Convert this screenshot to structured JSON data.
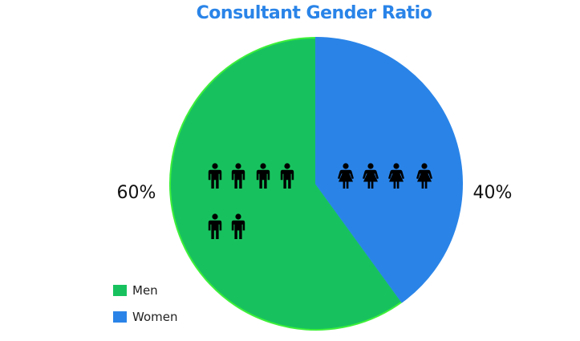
{
  "chart_data": {
    "type": "pie",
    "title": "Consultant Gender Ratio",
    "slices": [
      {
        "name": "Men",
        "value": 60,
        "label": "60%",
        "color": "#17c25e",
        "icon": "man-icon",
        "icon_count": 6
      },
      {
        "name": "Women",
        "value": 40,
        "label": "40%",
        "color": "#2a84e8",
        "icon": "woman-icon",
        "icon_count": 4
      }
    ],
    "legend_position": "bottom-left"
  }
}
